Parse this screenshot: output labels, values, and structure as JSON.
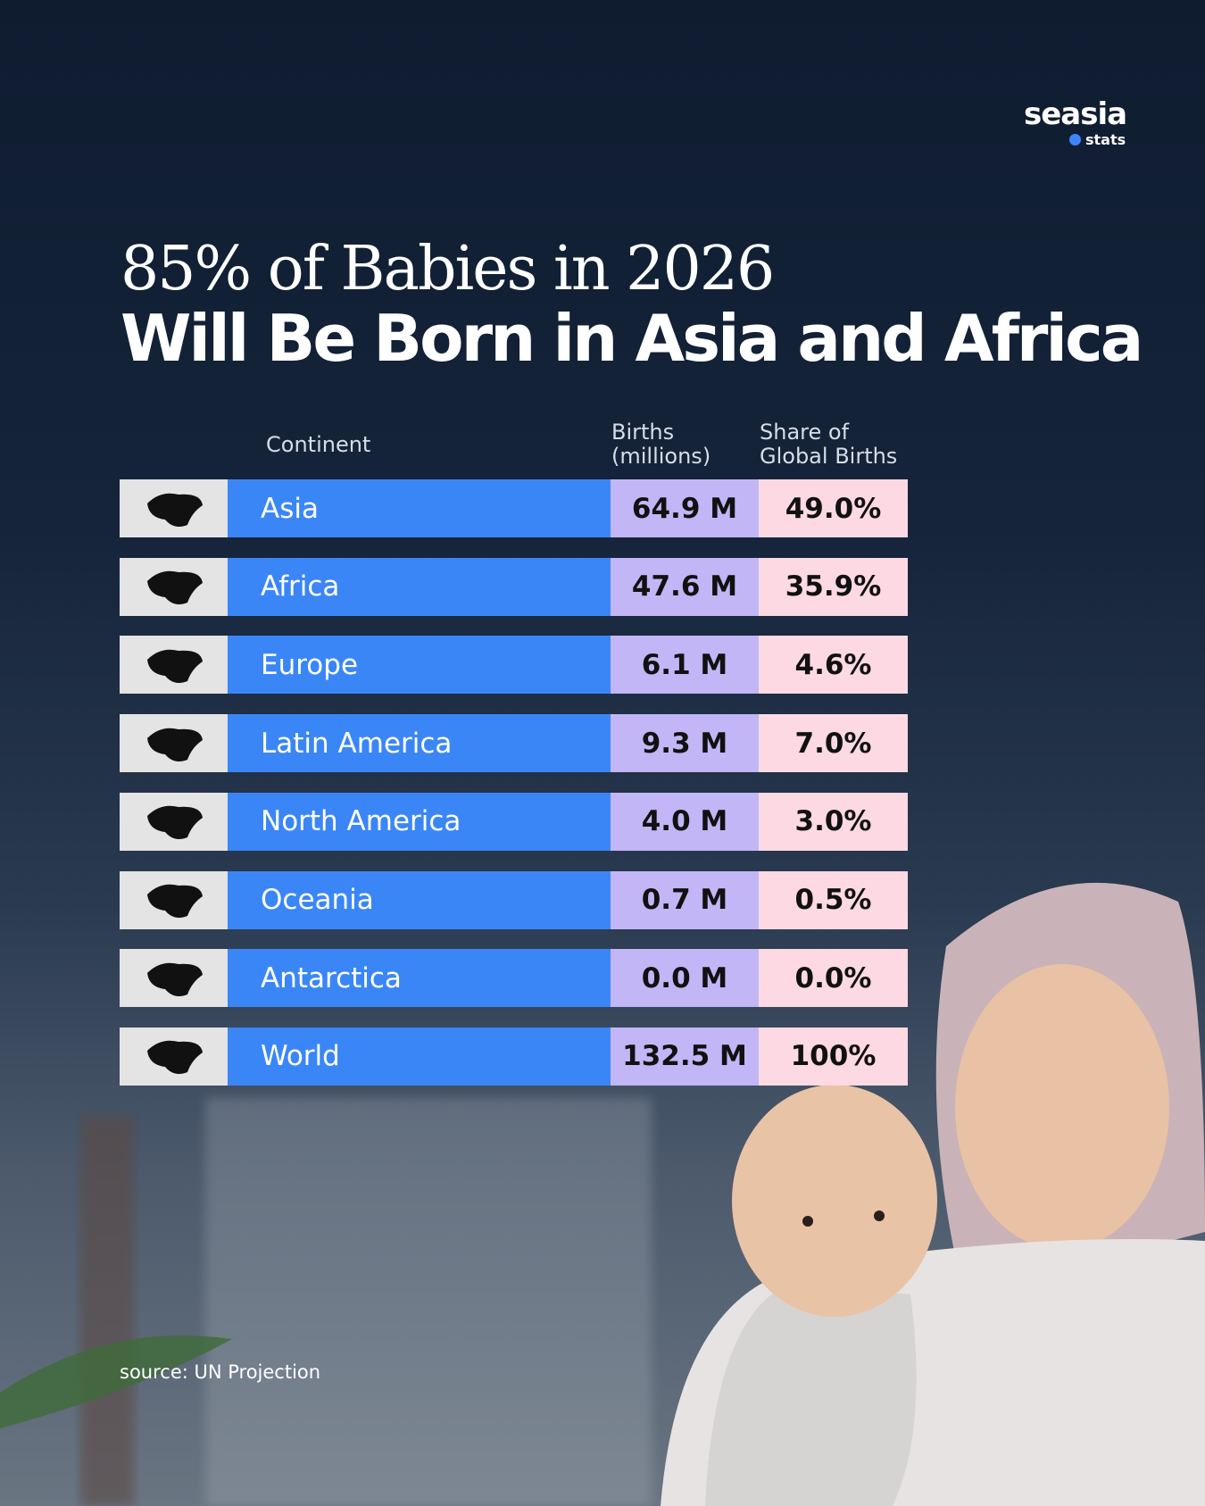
{
  "logo": {
    "name": "seasia",
    "sub": "stats"
  },
  "title": {
    "line1": "85% of Babies in 2026",
    "line2": "Will Be Born in Asia and Africa"
  },
  "table": {
    "headers": [
      "Continent",
      "Births (millions)",
      "Share of Global Births"
    ],
    "rows": [
      [
        "Asia",
        "64.9 M",
        "49.0%"
      ],
      [
        "Africa",
        "47.6 M",
        "35.9%"
      ],
      [
        "Europe",
        "6.1 M",
        "4.6%"
      ],
      [
        "Latin America",
        "9.3 M",
        "7.0%"
      ],
      [
        "North America",
        "4.0 M",
        "3.0%"
      ],
      [
        "Oceania",
        "0.7 M",
        "0.5%"
      ],
      [
        "Antarctica",
        "0.0 M",
        "0.0%"
      ],
      [
        "World",
        "132.5 M",
        "100%"
      ]
    ]
  },
  "source": "source: UN Projection"
}
